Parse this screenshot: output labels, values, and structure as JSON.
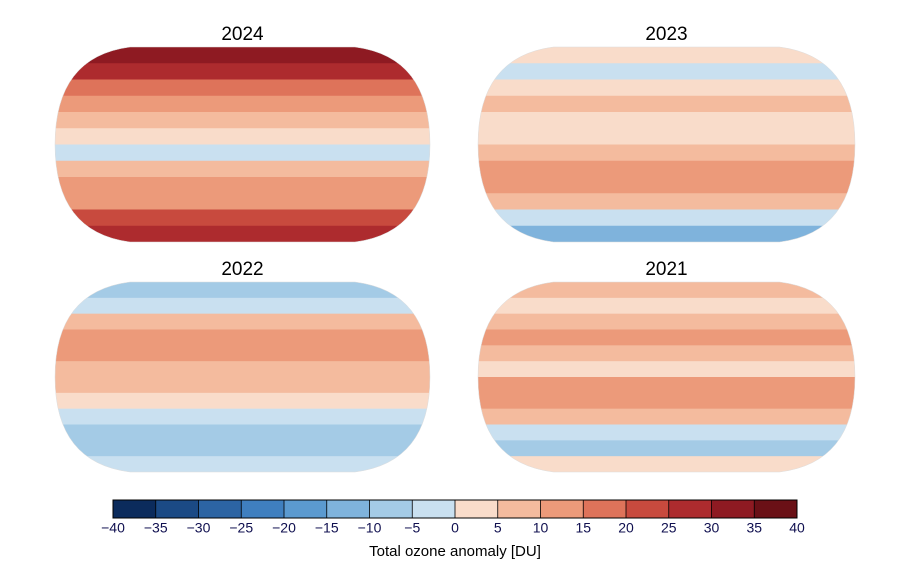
{
  "panels": [
    {
      "title": "2024",
      "bands": [
        32,
        25,
        18,
        12,
        6,
        3,
        -2,
        5,
        10,
        14,
        20,
        28
      ]
    },
    {
      "title": "2023",
      "bands": [
        2,
        -5,
        3,
        6,
        4,
        2,
        8,
        12,
        10,
        5,
        -5,
        -12
      ]
    },
    {
      "title": "2022",
      "bands": [
        -8,
        -4,
        5,
        10,
        10,
        6,
        6,
        3,
        -3,
        -8,
        -6,
        -4
      ]
    },
    {
      "title": "2021",
      "bands": [
        8,
        3,
        6,
        10,
        5,
        4,
        10,
        12,
        6,
        -2,
        -6,
        0
      ]
    }
  ],
  "colorbar": {
    "label": "Total ozone anomaly [DU]",
    "lim": [
      -40,
      40
    ],
    "ticks": [
      {
        "value": -40,
        "label": "−40"
      },
      {
        "value": -35,
        "label": "−35"
      },
      {
        "value": -30,
        "label": "−30"
      },
      {
        "value": -25,
        "label": "−25"
      },
      {
        "value": -20,
        "label": "−20"
      },
      {
        "value": -15,
        "label": "−15"
      },
      {
        "value": -10,
        "label": "−10"
      },
      {
        "value": -5,
        "label": "−5"
      },
      0,
      5,
      10,
      15,
      20,
      25,
      30,
      35,
      40
    ],
    "colors": [
      "#0b2b5c",
      "#1b4a85",
      "#2c64a3",
      "#3f7fbf",
      "#5b9ad0",
      "#7fb3dc",
      "#a4cbe6",
      "#c9e0f0",
      "#f9dcca",
      "#f4bb9e",
      "#ec9a7a",
      "#de735a",
      "#c84a3e",
      "#ad2b2e",
      "#8e1a22",
      "#6a1016"
    ]
  }
}
